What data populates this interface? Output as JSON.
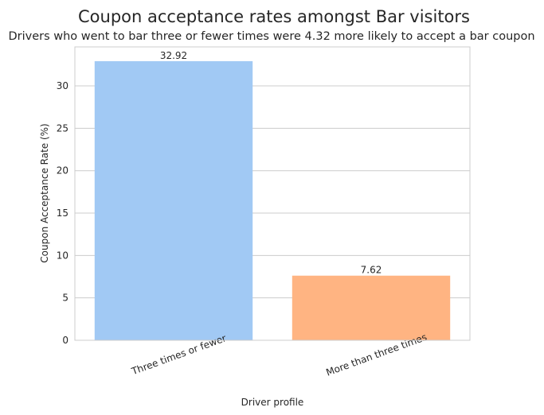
{
  "chart_data": {
    "type": "bar",
    "title": "Coupon acceptance rates amongst Bar visitors",
    "subtitle": "Drivers who went to bar three or fewer times were 4.32 more likely to accept a bar coupon",
    "xlabel": "Driver profile",
    "ylabel": "Coupon Acceptance Rate (%)",
    "categories": [
      "Three times or fewer",
      "More than three times"
    ],
    "values": [
      32.92,
      7.62
    ],
    "data_labels": [
      "32.92",
      "7.62"
    ],
    "colors": [
      "#a1c9f4",
      "#ffb482"
    ],
    "ylim": [
      0,
      34.6
    ],
    "yticks": [
      0,
      5,
      10,
      15,
      20,
      25,
      30
    ],
    "grid": true,
    "tick_label_rotation": -20
  }
}
